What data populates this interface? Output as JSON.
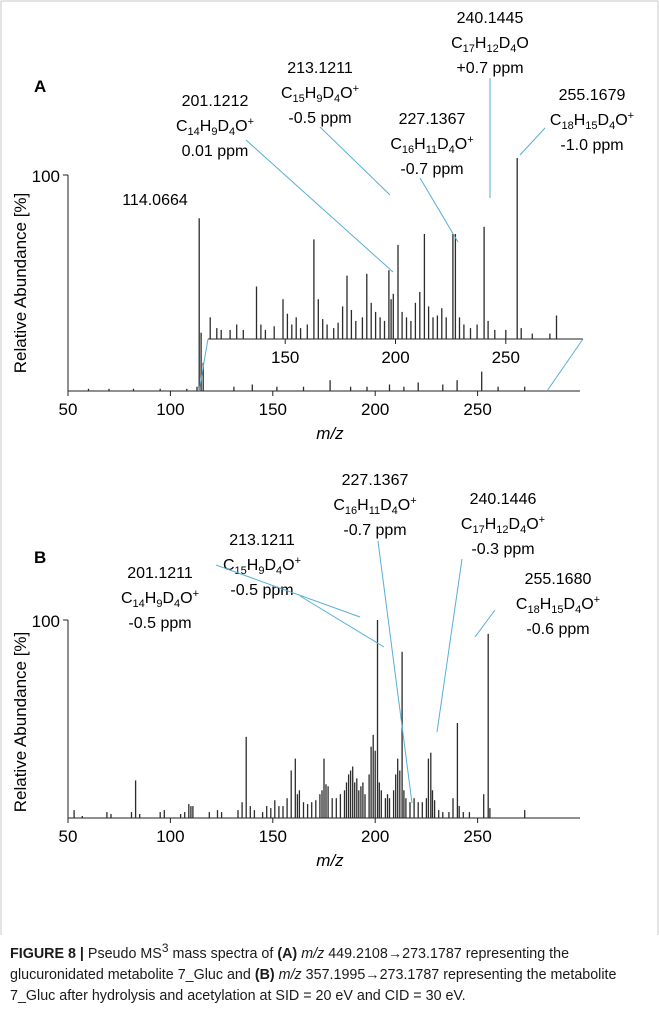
{
  "chart_data": [
    {
      "type": "bar",
      "panel_label": "A",
      "xlabel": "m/z",
      "ylabel": "Relative Abundance [%]",
      "xlim": [
        50,
        300
      ],
      "ylim": [
        0,
        100
      ],
      "x_ticks": [
        50,
        100,
        150,
        200,
        250
      ],
      "y_ticks": [
        100
      ],
      "peaks": [
        {
          "mz": 60,
          "value": 1
        },
        {
          "mz": 70,
          "value": 1
        },
        {
          "mz": 82,
          "value": 1
        },
        {
          "mz": 95,
          "value": 1
        },
        {
          "mz": 108,
          "value": 1
        },
        {
          "mz": 113,
          "value": 2
        },
        {
          "mz": 114.0664,
          "value": 80
        },
        {
          "mz": 115,
          "value": 27
        },
        {
          "mz": 116,
          "value": 13
        },
        {
          "mz": 131,
          "value": 2
        },
        {
          "mz": 140,
          "value": 3
        },
        {
          "mz": 152,
          "value": 2
        },
        {
          "mz": 165,
          "value": 2
        },
        {
          "mz": 178,
          "value": 5
        },
        {
          "mz": 188,
          "value": 2
        },
        {
          "mz": 196,
          "value": 2
        },
        {
          "mz": 207,
          "value": 3
        },
        {
          "mz": 214,
          "value": 2
        },
        {
          "mz": 221,
          "value": 4
        },
        {
          "mz": 233,
          "value": 3
        },
        {
          "mz": 240,
          "value": 5
        },
        {
          "mz": 252,
          "value": 9
        },
        {
          "mz": 260,
          "value": 2
        },
        {
          "mz": 273,
          "value": 2
        }
      ],
      "inset": {
        "xlim": [
          115,
          285
        ],
        "x_ticks": [
          150,
          200,
          250
        ],
        "ylim": [
          0,
          100
        ],
        "peaks": [
          {
            "mz": 116,
            "value": 12
          },
          {
            "mz": 119,
            "value": 6
          },
          {
            "mz": 121,
            "value": 5
          },
          {
            "mz": 125,
            "value": 5
          },
          {
            "mz": 128,
            "value": 8
          },
          {
            "mz": 131,
            "value": 5
          },
          {
            "mz": 137,
            "value": 29
          },
          {
            "mz": 139,
            "value": 8
          },
          {
            "mz": 141,
            "value": 5
          },
          {
            "mz": 145,
            "value": 7
          },
          {
            "mz": 149,
            "value": 22
          },
          {
            "mz": 151,
            "value": 14
          },
          {
            "mz": 153,
            "value": 8
          },
          {
            "mz": 155,
            "value": 12
          },
          {
            "mz": 157,
            "value": 6
          },
          {
            "mz": 160,
            "value": 8
          },
          {
            "mz": 163,
            "value": 55
          },
          {
            "mz": 165,
            "value": 22
          },
          {
            "mz": 167,
            "value": 11
          },
          {
            "mz": 169,
            "value": 8
          },
          {
            "mz": 172,
            "value": 6
          },
          {
            "mz": 174,
            "value": 9
          },
          {
            "mz": 176,
            "value": 18
          },
          {
            "mz": 178,
            "value": 35
          },
          {
            "mz": 180,
            "value": 16
          },
          {
            "mz": 182,
            "value": 10
          },
          {
            "mz": 185,
            "value": 12
          },
          {
            "mz": 187,
            "value": 36
          },
          {
            "mz": 189,
            "value": 20
          },
          {
            "mz": 191,
            "value": 15
          },
          {
            "mz": 193,
            "value": 12
          },
          {
            "mz": 195,
            "value": 10
          },
          {
            "mz": 197,
            "value": 38
          },
          {
            "mz": 198,
            "value": 22
          },
          {
            "mz": 199,
            "value": 25
          },
          {
            "mz": 201.1212,
            "value": 52
          },
          {
            "mz": 203,
            "value": 15
          },
          {
            "mz": 205,
            "value": 12
          },
          {
            "mz": 207,
            "value": 10
          },
          {
            "mz": 209,
            "value": 20
          },
          {
            "mz": 211,
            "value": 26
          },
          {
            "mz": 213.1211,
            "value": 58
          },
          {
            "mz": 215,
            "value": 18
          },
          {
            "mz": 217,
            "value": 12
          },
          {
            "mz": 219,
            "value": 13
          },
          {
            "mz": 221,
            "value": 17
          },
          {
            "mz": 223,
            "value": 12
          },
          {
            "mz": 226,
            "value": 58
          },
          {
            "mz": 227.1367,
            "value": 58
          },
          {
            "mz": 229,
            "value": 12
          },
          {
            "mz": 231,
            "value": 8
          },
          {
            "mz": 234,
            "value": 6
          },
          {
            "mz": 237,
            "value": 8
          },
          {
            "mz": 240.1445,
            "value": 62
          },
          {
            "mz": 242,
            "value": 10
          },
          {
            "mz": 245,
            "value": 5
          },
          {
            "mz": 250,
            "value": 5
          },
          {
            "mz": 255.1679,
            "value": 100
          },
          {
            "mz": 257,
            "value": 6
          },
          {
            "mz": 262,
            "value": 3
          },
          {
            "mz": 270,
            "value": 3
          },
          {
            "mz": 273,
            "value": 13
          }
        ]
      },
      "annotations": [
        {
          "mz_text": "114.0664",
          "formula": "",
          "ppm": ""
        },
        {
          "mz_text": "201.1212",
          "formula": [
            "C",
            "14",
            "H",
            "9",
            "D",
            "4",
            "O",
            "+"
          ],
          "ppm": "0.01 ppm"
        },
        {
          "mz_text": "213.1211",
          "formula": [
            "C",
            "15",
            "H",
            "9",
            "D",
            "4",
            "O",
            "+"
          ],
          "ppm": "-0.5 ppm"
        },
        {
          "mz_text": "227.1367",
          "formula": [
            "C",
            "16",
            "H",
            "11",
            "D",
            "4",
            "O",
            "+"
          ],
          "ppm": "-0.7 ppm"
        },
        {
          "mz_text": "240.1445",
          "formula": [
            "C",
            "17",
            "H",
            "12",
            "D",
            "4",
            "O",
            ""
          ],
          "ppm": "+0.7 ppm"
        },
        {
          "mz_text": "255.1679",
          "formula": [
            "C",
            "18",
            "H",
            "15",
            "D",
            "4",
            "O",
            "+"
          ],
          "ppm": "-1.0 ppm"
        }
      ]
    },
    {
      "type": "bar",
      "panel_label": "B",
      "xlabel": "m/z",
      "ylabel": "Relative Abundance [%]",
      "xlim": [
        50,
        300
      ],
      "ylim": [
        0,
        100
      ],
      "x_ticks": [
        50,
        100,
        150,
        200,
        250
      ],
      "y_ticks": [
        100
      ],
      "peaks": [
        {
          "mz": 53,
          "value": 4
        },
        {
          "mz": 57,
          "value": 1
        },
        {
          "mz": 69,
          "value": 3
        },
        {
          "mz": 71,
          "value": 2
        },
        {
          "mz": 81,
          "value": 3
        },
        {
          "mz": 83,
          "value": 19
        },
        {
          "mz": 85,
          "value": 2
        },
        {
          "mz": 95,
          "value": 3
        },
        {
          "mz": 97,
          "value": 4
        },
        {
          "mz": 105,
          "value": 2
        },
        {
          "mz": 107,
          "value": 3
        },
        {
          "mz": 109,
          "value": 7
        },
        {
          "mz": 110,
          "value": 6
        },
        {
          "mz": 111,
          "value": 6
        },
        {
          "mz": 119,
          "value": 3
        },
        {
          "mz": 123,
          "value": 4
        },
        {
          "mz": 125,
          "value": 3
        },
        {
          "mz": 133,
          "value": 4
        },
        {
          "mz": 135,
          "value": 8
        },
        {
          "mz": 137,
          "value": 41
        },
        {
          "mz": 139,
          "value": 6
        },
        {
          "mz": 141,
          "value": 4
        },
        {
          "mz": 145,
          "value": 3
        },
        {
          "mz": 147,
          "value": 6
        },
        {
          "mz": 149,
          "value": 5
        },
        {
          "mz": 151,
          "value": 9
        },
        {
          "mz": 153,
          "value": 6
        },
        {
          "mz": 155,
          "value": 6
        },
        {
          "mz": 157,
          "value": 10
        },
        {
          "mz": 159,
          "value": 24
        },
        {
          "mz": 161,
          "value": 30
        },
        {
          "mz": 162,
          "value": 12
        },
        {
          "mz": 163,
          "value": 14
        },
        {
          "mz": 165,
          "value": 8
        },
        {
          "mz": 167,
          "value": 7
        },
        {
          "mz": 169,
          "value": 8
        },
        {
          "mz": 171,
          "value": 9
        },
        {
          "mz": 173,
          "value": 12
        },
        {
          "mz": 174,
          "value": 14
        },
        {
          "mz": 175,
          "value": 30
        },
        {
          "mz": 176,
          "value": 17
        },
        {
          "mz": 177,
          "value": 16
        },
        {
          "mz": 179,
          "value": 10
        },
        {
          "mz": 181,
          "value": 10
        },
        {
          "mz": 183,
          "value": 12
        },
        {
          "mz": 185,
          "value": 14
        },
        {
          "mz": 186,
          "value": 18
        },
        {
          "mz": 187,
          "value": 22
        },
        {
          "mz": 188,
          "value": 24
        },
        {
          "mz": 189,
          "value": 26
        },
        {
          "mz": 190,
          "value": 18
        },
        {
          "mz": 191,
          "value": 20
        },
        {
          "mz": 192,
          "value": 14
        },
        {
          "mz": 193,
          "value": 16
        },
        {
          "mz": 194,
          "value": 18
        },
        {
          "mz": 195,
          "value": 12
        },
        {
          "mz": 197,
          "value": 22
        },
        {
          "mz": 198,
          "value": 36
        },
        {
          "mz": 199,
          "value": 42
        },
        {
          "mz": 200,
          "value": 34
        },
        {
          "mz": 201.1211,
          "value": 100
        },
        {
          "mz": 202,
          "value": 18
        },
        {
          "mz": 203,
          "value": 14
        },
        {
          "mz": 205,
          "value": 10
        },
        {
          "mz": 206,
          "value": 12
        },
        {
          "mz": 207,
          "value": 10
        },
        {
          "mz": 209,
          "value": 14
        },
        {
          "mz": 210,
          "value": 22
        },
        {
          "mz": 211,
          "value": 30
        },
        {
          "mz": 212,
          "value": 24
        },
        {
          "mz": 213.1211,
          "value": 84
        },
        {
          "mz": 214,
          "value": 14
        },
        {
          "mz": 215,
          "value": 10
        },
        {
          "mz": 217,
          "value": 8
        },
        {
          "mz": 219,
          "value": 10
        },
        {
          "mz": 221,
          "value": 8
        },
        {
          "mz": 223,
          "value": 8
        },
        {
          "mz": 225,
          "value": 10
        },
        {
          "mz": 226,
          "value": 30
        },
        {
          "mz": 227.1367,
          "value": 33
        },
        {
          "mz": 228,
          "value": 14
        },
        {
          "mz": 229,
          "value": 9
        },
        {
          "mz": 231,
          "value": 4
        },
        {
          "mz": 233,
          "value": 3
        },
        {
          "mz": 236,
          "value": 3
        },
        {
          "mz": 238,
          "value": 10
        },
        {
          "mz": 240.1446,
          "value": 48
        },
        {
          "mz": 241,
          "value": 6
        },
        {
          "mz": 243,
          "value": 3
        },
        {
          "mz": 246,
          "value": 3
        },
        {
          "mz": 253,
          "value": 12
        },
        {
          "mz": 255.168,
          "value": 93
        },
        {
          "mz": 256,
          "value": 5
        },
        {
          "mz": 273,
          "value": 4
        }
      ],
      "annotations": [
        {
          "mz_text": "201.1211",
          "formula": [
            "C",
            "14",
            "H",
            "9",
            "D",
            "4",
            "O",
            "+"
          ],
          "ppm": "-0.5 ppm"
        },
        {
          "mz_text": "213.1211",
          "formula": [
            "C",
            "15",
            "H",
            "9",
            "D",
            "4",
            "O",
            "+"
          ],
          "ppm": "-0.5 ppm"
        },
        {
          "mz_text": "227.1367",
          "formula": [
            "C",
            "16",
            "H",
            "11",
            "D",
            "4",
            "O",
            "+"
          ],
          "ppm": "-0.7 ppm"
        },
        {
          "mz_text": "240.1446",
          "formula": [
            "C",
            "17",
            "H",
            "12",
            "D",
            "4",
            "O",
            "+"
          ],
          "ppm": "-0.3 ppm"
        },
        {
          "mz_text": "255.1680",
          "formula": [
            "C",
            "18",
            "H",
            "15",
            "D",
            "4",
            "O",
            "+"
          ],
          "ppm": "-0.6 ppm"
        }
      ]
    }
  ],
  "caption": {
    "label": "FIGURE 8 |",
    "t1": "Pseudo MS",
    "sup": "3",
    "t2": "mass spectra of",
    "pa": "(A)",
    "mz1": "m/z",
    "t3": "449.2108→273.1787 representing the glucuronidated metabolite 7_Gluc and",
    "pb": "(B)",
    "mz2": "m/z",
    "t4": "357.1995→273.1787 representing the metabolite 7_Gluc after hydrolysis and acetylation at SID = 20 eV and CID = 30 eV."
  }
}
